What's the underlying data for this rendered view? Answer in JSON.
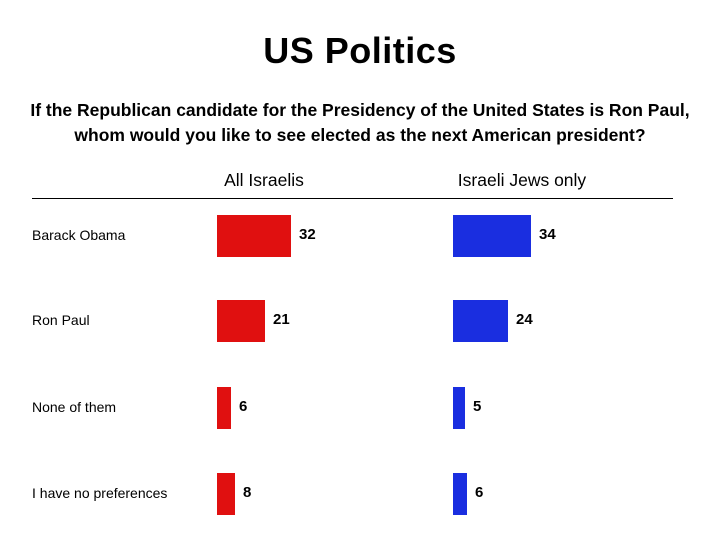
{
  "title": "US Politics",
  "question": {
    "line1": "If the Republican candidate for the Presidency of the United States is Ron Paul,",
    "line2": "whom would you like to see elected as the next American president?"
  },
  "chart_data": {
    "type": "bar",
    "orientation": "horizontal",
    "categories": [
      "Barack Obama",
      "Ron Paul",
      "None of them",
      "I have no preferences"
    ],
    "series": [
      {
        "name": "All Israelis",
        "values": [
          32,
          21,
          6,
          8
        ],
        "color": "#e01010"
      },
      {
        "name": "Israeli Jews only",
        "values": [
          34,
          24,
          5,
          6
        ],
        "color": "#1a2ee0"
      }
    ],
    "legend": "column headers",
    "grid": false
  }
}
